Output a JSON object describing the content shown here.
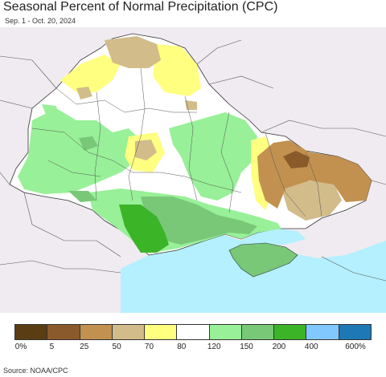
{
  "title": "Seasonal Percent of Normal Precipitation (CPC)",
  "date_range": "Sep. 1 - Oct. 20, 2024",
  "source": "Source: NOAA/CPC",
  "legend": {
    "colors": [
      "#5a3d12",
      "#8b5a2b",
      "#c29150",
      "#d2bc8a",
      "#ffff80",
      "#ffffff",
      "#98f098",
      "#78c878",
      "#3cb428",
      "#80c8ff",
      "#1e78b4"
    ],
    "labels": [
      "0%",
      "5",
      "25",
      "50",
      "70",
      "80",
      "120",
      "150",
      "200",
      "400",
      "600%"
    ]
  },
  "map": {
    "land_outside": "#f0ebf0",
    "sea": "#b4f0ff",
    "regions": [
      "Ukraine",
      "Crimea",
      "Black Sea",
      "Sea of Azov"
    ]
  }
}
